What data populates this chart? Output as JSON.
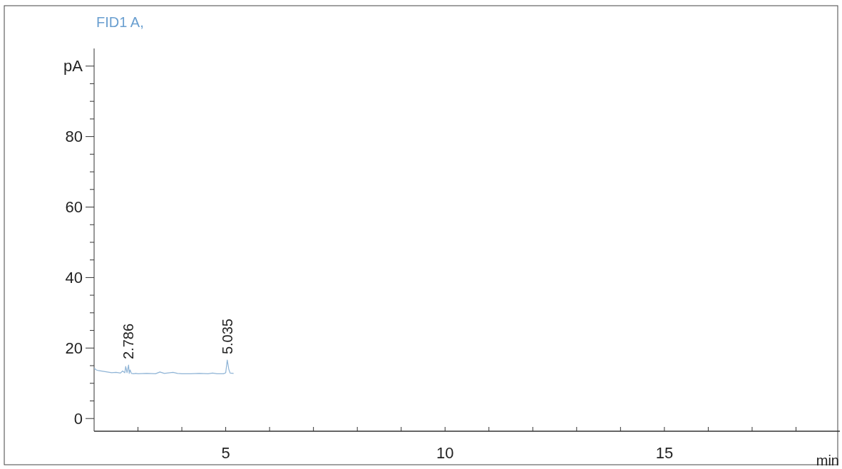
{
  "chart_data": {
    "type": "line",
    "title": "FID1 A,",
    "xlabel": "min",
    "x": [
      2.0,
      2.05,
      2.1,
      2.2,
      2.3,
      2.4,
      2.5,
      2.55,
      2.6,
      2.65,
      2.7,
      2.72,
      2.75,
      2.786,
      2.8,
      2.82,
      2.85,
      2.9,
      2.95,
      3.0,
      3.2,
      3.4,
      3.5,
      3.6,
      3.8,
      3.9,
      4.0,
      4.2,
      4.4,
      4.6,
      4.7,
      4.8,
      4.95,
      5.0,
      5.035,
      5.07,
      5.1,
      5.18
    ],
    "series": [
      {
        "color": "#8fb4d6",
        "values": [
          14.3,
          13.8,
          13.6,
          13.4,
          13.2,
          13.0,
          13.1,
          13.0,
          12.9,
          13.5,
          13.0,
          14.8,
          13.0,
          15.2,
          12.8,
          13.8,
          12.8,
          12.7,
          12.8,
          12.7,
          12.8,
          12.7,
          13.2,
          12.8,
          13.1,
          12.8,
          12.7,
          12.7,
          12.8,
          12.7,
          12.9,
          12.7,
          12.7,
          13.0,
          16.6,
          14.0,
          12.9,
          12.8
        ]
      }
    ],
    "xlim": [
      2,
      19
    ],
    "xticks": [
      {
        "value": 3,
        "label": null
      },
      {
        "value": 4,
        "label": null
      },
      5,
      {
        "value": 6,
        "label": null
      },
      {
        "value": 7,
        "label": null
      },
      {
        "value": 8,
        "label": null
      },
      {
        "value": 9,
        "label": null
      },
      10,
      {
        "value": 11,
        "label": null
      },
      {
        "value": 12,
        "label": null
      },
      {
        "value": 13,
        "label": null
      },
      {
        "value": 14,
        "label": null
      },
      15,
      {
        "value": 16,
        "label": null
      },
      {
        "value": 17,
        "label": null
      },
      {
        "value": 18,
        "label": null
      }
    ],
    "ylim": [
      -3.6,
      105
    ],
    "yticks": [
      0,
      {
        "value": 5,
        "label": null
      },
      {
        "value": 10,
        "label": null
      },
      {
        "value": 15,
        "label": null
      },
      20,
      {
        "value": 25,
        "label": null
      },
      {
        "value": 30,
        "label": null
      },
      {
        "value": 35,
        "label": null
      },
      40,
      {
        "value": 45,
        "label": null
      },
      {
        "value": 50,
        "label": null
      },
      {
        "value": 55,
        "label": null
      },
      60,
      {
        "value": 65,
        "label": null
      },
      {
        "value": 70,
        "label": null
      },
      {
        "value": 75,
        "label": null
      },
      80,
      {
        "value": 85,
        "label": null
      },
      {
        "value": 90,
        "label": null
      },
      {
        "value": 95,
        "label": null
      },
      {
        "value": 100,
        "label": "pA"
      }
    ],
    "annotations": [
      {
        "text": "2.786",
        "x": 2.786,
        "y": 15.2
      },
      {
        "text": "5.035",
        "x": 5.035,
        "y": 16.6
      }
    ],
    "grid": false,
    "line_style": "solid"
  }
}
